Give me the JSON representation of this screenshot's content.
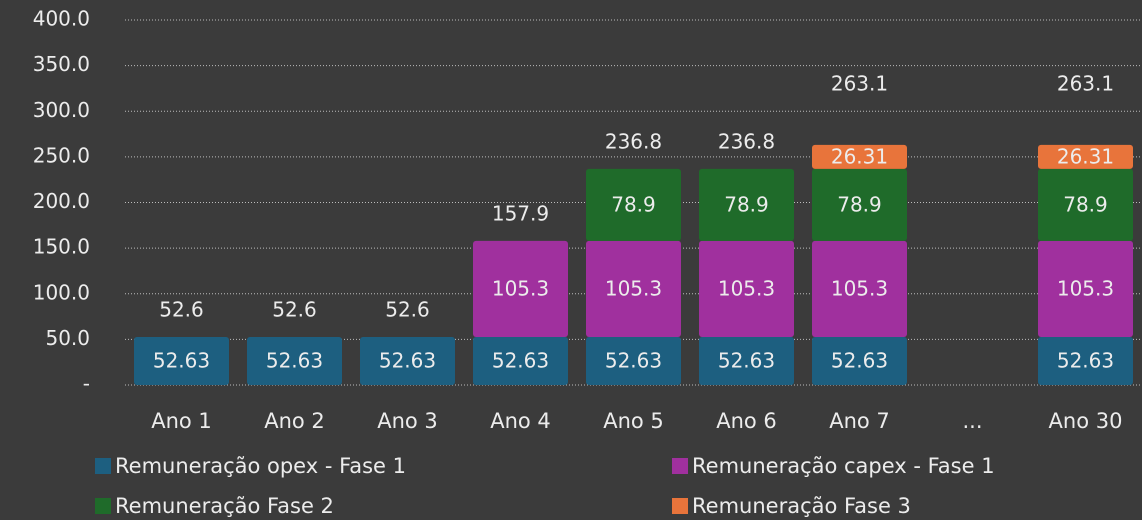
{
  "chart_data": {
    "type": "stacked_bar",
    "categories": [
      "Ano 1",
      "Ano 2",
      "Ano 3",
      "Ano 4",
      "Ano 5",
      "Ano 6",
      "Ano 7",
      "...",
      "Ano 30"
    ],
    "series": [
      {
        "name": "Remuneração opex - Fase 1",
        "color": "#1d5f80",
        "values": [
          52.63,
          52.63,
          52.63,
          52.63,
          52.63,
          52.63,
          52.63,
          null,
          52.63
        ]
      },
      {
        "name": "Remuneração capex - Fase 1",
        "color": "#a0309e",
        "values": [
          null,
          null,
          null,
          105.3,
          105.3,
          105.3,
          105.3,
          null,
          105.3
        ]
      },
      {
        "name": "Remuneração Fase 2",
        "color": "#1f6b2a",
        "values": [
          null,
          null,
          null,
          null,
          78.9,
          78.9,
          78.9,
          null,
          78.9
        ]
      },
      {
        "name": "Remuneração Fase 3",
        "color": "#e8743b",
        "values": [
          null,
          null,
          null,
          null,
          null,
          null,
          26.31,
          null,
          26.31
        ]
      }
    ],
    "totals": [
      52.6,
      52.6,
      52.6,
      157.9,
      236.8,
      236.8,
      263.1,
      null,
      263.1
    ],
    "ylim": [
      0,
      400
    ],
    "yticks": [
      {
        "value": 0,
        "label": "-"
      },
      {
        "value": 50,
        "label": "50.0"
      },
      {
        "value": 100,
        "label": "100.0"
      },
      {
        "value": 150,
        "label": "150.0"
      },
      {
        "value": 200,
        "label": "200.0"
      },
      {
        "value": 250,
        "label": "250.0"
      },
      {
        "value": 300,
        "label": "300.0"
      },
      {
        "value": 350,
        "label": "350.0"
      },
      {
        "value": 400,
        "label": "400.0"
      }
    ],
    "grid": true,
    "legend": "bottom"
  }
}
